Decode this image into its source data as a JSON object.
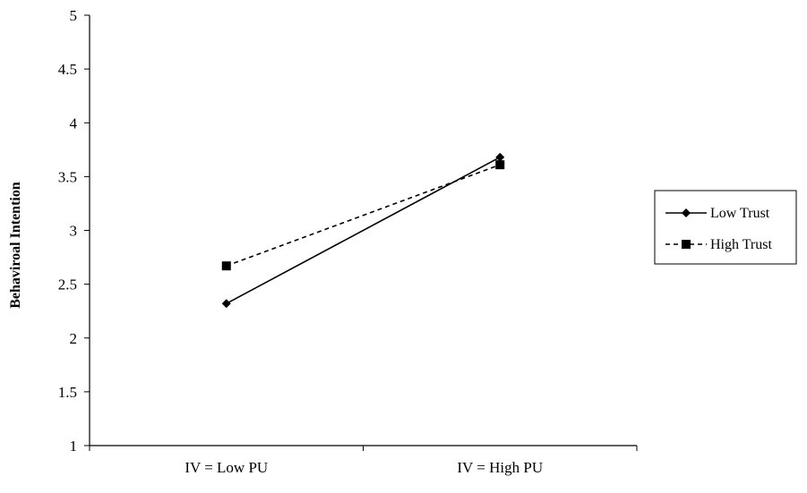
{
  "chart_data": {
    "type": "line",
    "title": "",
    "xlabel": "",
    "ylabel": "Behaviroal Intention",
    "categories": [
      "IV = Low PU",
      "IV = High PU"
    ],
    "ylim": [
      1,
      5
    ],
    "yticks": [
      "1",
      "1.5",
      "2",
      "2.5",
      "3",
      "3.5",
      "4",
      "4.5",
      "5"
    ],
    "grid": false,
    "legend": "right",
    "series": [
      {
        "name": "Low Trust",
        "values": [
          2.32,
          3.68
        ],
        "marker": "diamond",
        "line_style": "solid",
        "color": "#000000"
      },
      {
        "name": "High Trust",
        "values": [
          2.67,
          3.61
        ],
        "marker": "square",
        "line_style": "dashed",
        "color": "#000000"
      }
    ]
  }
}
